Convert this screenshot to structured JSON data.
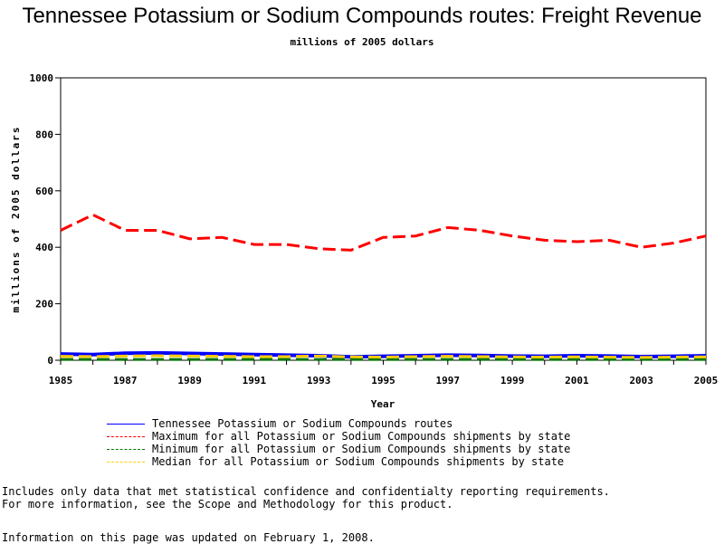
{
  "chart_data": {
    "type": "line",
    "title": "Tennessee Potassium or Sodium Compounds routes: Freight Revenue",
    "subtitle": "millions of 2005 dollars",
    "xlabel": "Year",
    "ylabel": "millions of 2005 dollars",
    "ylim": [
      0,
      1000
    ],
    "xlim": [
      1985,
      2005
    ],
    "yticks": [
      "0",
      "200",
      "400",
      "600",
      "800",
      "1000"
    ],
    "xticks": [
      "1985",
      "1987",
      "1989",
      "1991",
      "1993",
      "1995",
      "1997",
      "1999",
      "2001",
      "2003",
      "2005"
    ],
    "grid": false,
    "legend_position": "bottom",
    "x": [
      1985,
      1986,
      1987,
      1988,
      1989,
      1990,
      1991,
      1992,
      1993,
      1994,
      1995,
      1996,
      1997,
      1998,
      1999,
      2000,
      2001,
      2002,
      2003,
      2004,
      2005
    ],
    "series": [
      {
        "name": "Tennessee Potassium or Sodium Compounds routes",
        "color": "#0000ff",
        "dash": "solid",
        "values": [
          22,
          20,
          25,
          26,
          24,
          22,
          20,
          18,
          16,
          12,
          14,
          16,
          18,
          17,
          15,
          14,
          16,
          15,
          13,
          14,
          16
        ]
      },
      {
        "name": "Maximum for all Potassium or Sodium Compounds shipments by state",
        "color": "#ff0000",
        "dash": "dashed",
        "values": [
          460,
          515,
          460,
          460,
          430,
          435,
          410,
          410,
          395,
          390,
          435,
          440,
          470,
          460,
          440,
          425,
          420,
          425,
          400,
          415,
          440
        ]
      },
      {
        "name": "Minimum for all Potassium or Sodium Compounds shipments by state",
        "color": "#007700",
        "dash": "dashed",
        "values": [
          3,
          3,
          3,
          3,
          3,
          3,
          3,
          3,
          3,
          3,
          3,
          3,
          3,
          3,
          3,
          3,
          3,
          3,
          3,
          3,
          3
        ]
      },
      {
        "name": "Median for all Potassium or Sodium Compounds shipments by state",
        "color": "#ffcc00",
        "dash": "dashed",
        "values": [
          14,
          13,
          15,
          16,
          15,
          14,
          13,
          13,
          15,
          12,
          11,
          13,
          14,
          13,
          12,
          11,
          12,
          11,
          10,
          11,
          12
        ]
      }
    ]
  },
  "notes": {
    "line1": "Includes only data that met statistical confidence and confidentialty reporting requirements.",
    "line2": "For more information, see the Scope and Methodology for this product.",
    "updated": "Information on this page was updated on February 1, 2008."
  }
}
